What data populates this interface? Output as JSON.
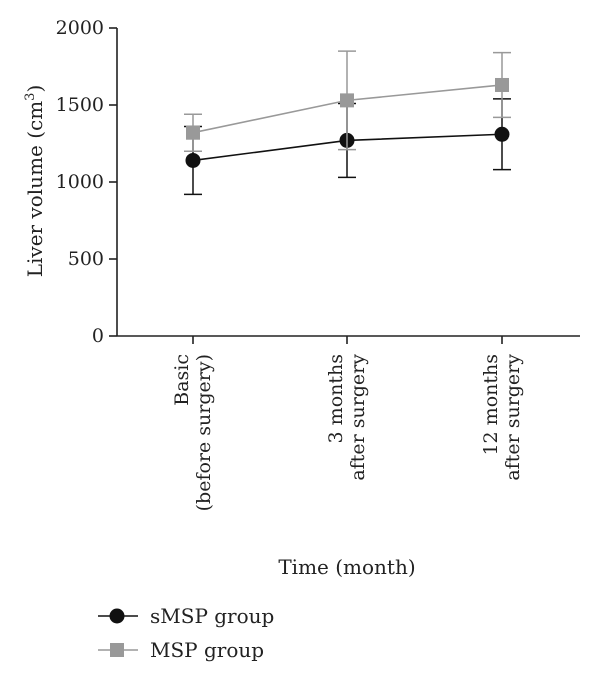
{
  "chart_data": {
    "type": "line",
    "categories": [
      [
        "Basic",
        "(before surgery)"
      ],
      [
        "3 months",
        "after surgery"
      ],
      [
        "12 months",
        "after surgery"
      ]
    ],
    "series": [
      {
        "name": "sMSP group",
        "values": [
          1140,
          1270,
          1310
        ],
        "error": [
          220,
          240,
          230
        ],
        "color": "#111111",
        "marker": "circle"
      },
      {
        "name": "MSP group",
        "values": [
          1320,
          1530,
          1630
        ],
        "error": [
          120,
          320,
          210
        ],
        "color": "#999999",
        "marker": "square"
      }
    ],
    "xlabel": "Time (month)",
    "ylabel_main": "Liver volume (cm",
    "ylabel_sup": "3",
    "ylabel_end": ")",
    "ylim": [
      0,
      2000
    ],
    "yticks": [
      0,
      500,
      1000,
      1500,
      2000
    ],
    "grid": false,
    "legend_position": "bottom-left"
  }
}
